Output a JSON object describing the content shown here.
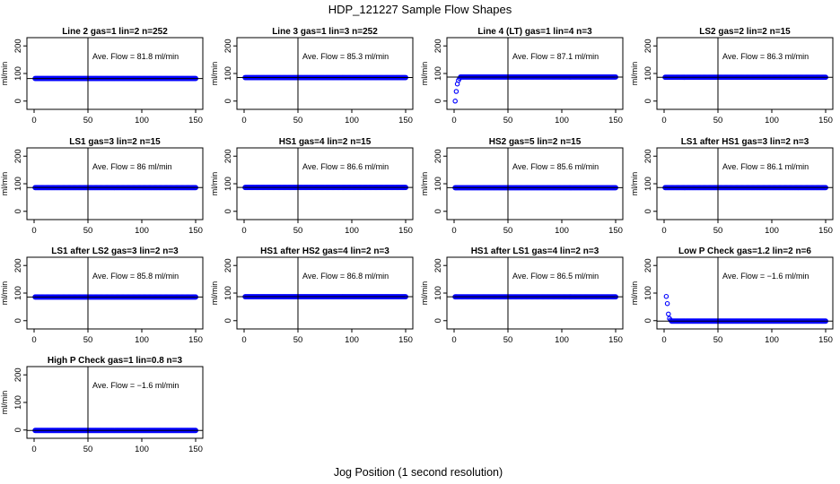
{
  "figure": {
    "title": "HDP_121227  Sample Flow Shapes",
    "xlabel": "Jog Position (1 second resolution)"
  },
  "chart_data": [
    {
      "type": "scatter",
      "title": "Line 2 gas=1 lin=2 n=252",
      "ylabel": "ml/min",
      "annotation": "Ave. Flow =  81.8  ml/min",
      "xlim": [
        0,
        150
      ],
      "ylim": [
        -30,
        230
      ],
      "xticks": [
        0,
        50,
        100,
        150
      ],
      "yticks": [
        0,
        100,
        200
      ],
      "vline_x": 50,
      "hline_y": 81.8,
      "x_range": [
        1,
        150
      ],
      "flat_y": 81.8,
      "initial_points": []
    },
    {
      "type": "scatter",
      "title": "Line 3 gas=1 lin=3 n=252",
      "ylabel": "ml/min",
      "annotation": "Ave. Flow =  85.3  ml/min",
      "xlim": [
        0,
        150
      ],
      "ylim": [
        -30,
        230
      ],
      "xticks": [
        0,
        50,
        100,
        150
      ],
      "yticks": [
        0,
        100,
        200
      ],
      "vline_x": 50,
      "hline_y": 85.3,
      "x_range": [
        1,
        150
      ],
      "flat_y": 85.3,
      "initial_points": []
    },
    {
      "type": "scatter",
      "title": "Line 4 (LT) gas=1 lin=4 n=3",
      "ylabel": "ml/min",
      "annotation": "Ave. Flow =  87.1  ml/min",
      "xlim": [
        0,
        150
      ],
      "ylim": [
        -30,
        230
      ],
      "xticks": [
        0,
        50,
        100,
        150
      ],
      "yticks": [
        0,
        100,
        200
      ],
      "vline_x": 50,
      "hline_y": 87.1,
      "x_range": [
        1,
        150
      ],
      "flat_y": 87.1,
      "initial_points": [
        [
          1,
          0
        ],
        [
          2,
          35
        ],
        [
          3,
          62
        ],
        [
          4,
          75
        ],
        [
          5,
          82
        ]
      ]
    },
    {
      "type": "scatter",
      "title": "LS2 gas=2 lin=2 n=15",
      "ylabel": "ml/min",
      "annotation": "Ave. Flow =  86.3  ml/min",
      "xlim": [
        0,
        150
      ],
      "ylim": [
        -30,
        230
      ],
      "xticks": [
        0,
        50,
        100,
        150
      ],
      "yticks": [
        0,
        100,
        200
      ],
      "vline_x": 50,
      "hline_y": 86.3,
      "x_range": [
        1,
        150
      ],
      "flat_y": 86.3,
      "initial_points": []
    },
    {
      "type": "scatter",
      "title": "LS1 gas=3 lin=2 n=15",
      "ylabel": "ml/min",
      "annotation": "Ave. Flow =  86  ml/min",
      "xlim": [
        0,
        150
      ],
      "ylim": [
        -30,
        230
      ],
      "xticks": [
        0,
        50,
        100,
        150
      ],
      "yticks": [
        0,
        100,
        200
      ],
      "vline_x": 50,
      "hline_y": 86,
      "x_range": [
        1,
        150
      ],
      "flat_y": 86,
      "initial_points": []
    },
    {
      "type": "scatter",
      "title": "HS1 gas=4 lin=2 n=15",
      "ylabel": "ml/min",
      "annotation": "Ave. Flow =  86.6  ml/min",
      "xlim": [
        0,
        150
      ],
      "ylim": [
        -30,
        230
      ],
      "xticks": [
        0,
        50,
        100,
        150
      ],
      "yticks": [
        0,
        100,
        200
      ],
      "vline_x": 50,
      "hline_y": 86.6,
      "x_range": [
        1,
        150
      ],
      "flat_y": 86.6,
      "initial_points": []
    },
    {
      "type": "scatter",
      "title": "HS2 gas=5 lin=2 n=15",
      "ylabel": "ml/min",
      "annotation": "Ave. Flow =  85.6  ml/min",
      "xlim": [
        0,
        150
      ],
      "ylim": [
        -30,
        230
      ],
      "xticks": [
        0,
        50,
        100,
        150
      ],
      "yticks": [
        0,
        100,
        200
      ],
      "vline_x": 50,
      "hline_y": 85.6,
      "x_range": [
        1,
        150
      ],
      "flat_y": 85.6,
      "initial_points": []
    },
    {
      "type": "scatter",
      "title": "LS1 after HS1 gas=3 lin=2 n=3",
      "ylabel": "ml/min",
      "annotation": "Ave. Flow =  86.1  ml/min",
      "xlim": [
        0,
        150
      ],
      "ylim": [
        -30,
        230
      ],
      "xticks": [
        0,
        50,
        100,
        150
      ],
      "yticks": [
        0,
        100,
        200
      ],
      "vline_x": 50,
      "hline_y": 86.1,
      "x_range": [
        1,
        150
      ],
      "flat_y": 86.1,
      "initial_points": []
    },
    {
      "type": "scatter",
      "title": "LS1 after LS2 gas=3 lin=2 n=3",
      "ylabel": "ml/min",
      "annotation": "Ave. Flow =  85.8  ml/min",
      "xlim": [
        0,
        150
      ],
      "ylim": [
        -30,
        230
      ],
      "xticks": [
        0,
        50,
        100,
        150
      ],
      "yticks": [
        0,
        100,
        200
      ],
      "vline_x": 50,
      "hline_y": 85.8,
      "x_range": [
        1,
        150
      ],
      "flat_y": 85.8,
      "initial_points": []
    },
    {
      "type": "scatter",
      "title": "HS1 after HS2 gas=4 lin=2 n=3",
      "ylabel": "ml/min",
      "annotation": "Ave. Flow =  86.8  ml/min",
      "xlim": [
        0,
        150
      ],
      "ylim": [
        -30,
        230
      ],
      "xticks": [
        0,
        50,
        100,
        150
      ],
      "yticks": [
        0,
        100,
        200
      ],
      "vline_x": 50,
      "hline_y": 86.8,
      "x_range": [
        1,
        150
      ],
      "flat_y": 86.8,
      "initial_points": []
    },
    {
      "type": "scatter",
      "title": "HS1 after LS1 gas=4 lin=2 n=3",
      "ylabel": "ml/min",
      "annotation": "Ave. Flow =  86.5  ml/min",
      "xlim": [
        0,
        150
      ],
      "ylim": [
        -30,
        230
      ],
      "xticks": [
        0,
        50,
        100,
        150
      ],
      "yticks": [
        0,
        100,
        200
      ],
      "vline_x": 50,
      "hline_y": 86.5,
      "x_range": [
        1,
        150
      ],
      "flat_y": 86.5,
      "initial_points": []
    },
    {
      "type": "scatter",
      "title": "Low P Check gas=1.2 lin=2 n=6",
      "ylabel": "ml/min",
      "annotation": "Ave. Flow =  −1.6  ml/min",
      "xlim": [
        0,
        150
      ],
      "ylim": [
        -30,
        230
      ],
      "xticks": [
        0,
        50,
        100,
        150
      ],
      "yticks": [
        0,
        100,
        200
      ],
      "vline_x": 50,
      "hline_y": -1.6,
      "x_range": [
        1,
        150
      ],
      "flat_y": -1.6,
      "initial_points": [
        [
          2,
          88
        ],
        [
          3,
          62
        ],
        [
          4,
          24
        ],
        [
          5,
          8
        ],
        [
          6,
          2
        ]
      ]
    },
    {
      "type": "scatter",
      "title": "High P Check gas=1 lin=0.8 n=3",
      "ylabel": "ml/min",
      "annotation": "Ave. Flow =  −1.6  ml/min",
      "xlim": [
        0,
        150
      ],
      "ylim": [
        -30,
        230
      ],
      "xticks": [
        0,
        50,
        100,
        150
      ],
      "yticks": [
        0,
        100,
        200
      ],
      "vline_x": 50,
      "hline_y": -1.6,
      "x_range": [
        1,
        150
      ],
      "flat_y": -1.6,
      "initial_points": []
    }
  ],
  "colors": {
    "points": "#0000ff",
    "axes": "#000000",
    "background": "#ffffff"
  }
}
